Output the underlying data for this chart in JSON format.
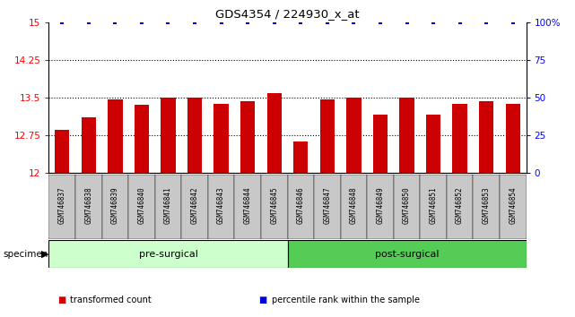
{
  "title": "GDS4354 / 224930_x_at",
  "samples": [
    "GSM746837",
    "GSM746838",
    "GSM746839",
    "GSM746840",
    "GSM746841",
    "GSM746842",
    "GSM746843",
    "GSM746844",
    "GSM746845",
    "GSM746846",
    "GSM746847",
    "GSM746848",
    "GSM746849",
    "GSM746850",
    "GSM746851",
    "GSM746852",
    "GSM746853",
    "GSM746854"
  ],
  "bar_values": [
    12.85,
    13.1,
    13.47,
    13.35,
    13.5,
    13.5,
    13.37,
    13.43,
    13.58,
    12.63,
    13.47,
    13.5,
    13.15,
    13.5,
    13.15,
    13.38,
    13.42,
    13.37
  ],
  "percentile_values": [
    100,
    100,
    100,
    100,
    100,
    100,
    100,
    100,
    100,
    100,
    100,
    100,
    100,
    100,
    100,
    100,
    100,
    100
  ],
  "group_labels": [
    "pre-surgical",
    "post-surgical"
  ],
  "group_counts": [
    9,
    9
  ],
  "ylim_left": [
    12,
    15
  ],
  "ylim_right": [
    0,
    100
  ],
  "yticks_left": [
    12,
    12.75,
    13.5,
    14.25,
    15
  ],
  "yticks_right": [
    0,
    25,
    50,
    75,
    100
  ],
  "ytick_labels_right": [
    "0",
    "25",
    "50",
    "75",
    "100%"
  ],
  "grid_values": [
    12.75,
    13.5,
    14.25
  ],
  "bar_color": "#cc0000",
  "percentile_color": "#0000cc",
  "pre_surgical_color": "#ccffcc",
  "post_surgical_color": "#55cc55",
  "label_bg_color": "#c8c8c8",
  "bar_width": 0.55,
  "legend_items": [
    {
      "label": "transformed count",
      "color": "#cc0000"
    },
    {
      "label": "percentile rank within the sample",
      "color": "#0000cc"
    }
  ]
}
